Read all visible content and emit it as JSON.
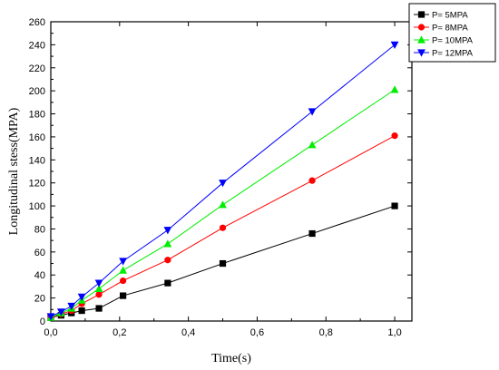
{
  "chart_data": {
    "type": "line",
    "xlabel": "Time(s)",
    "ylabel": "Longitudinal stess(MPA)",
    "xlim": [
      0.0,
      1.05
    ],
    "ylim": [
      0,
      260
    ],
    "x_ticks": [
      "0,0",
      "0,2",
      "0,4",
      "0,6",
      "0,8",
      "1,0"
    ],
    "y_ticks": [
      "0",
      "20",
      "40",
      "60",
      "80",
      "100",
      "120",
      "140",
      "160",
      "180",
      "200",
      "220",
      "240",
      "260"
    ],
    "legend_position": "top-right",
    "series": [
      {
        "name": "P= 5MPA",
        "color": "#000000",
        "marker": "square",
        "x": [
          0.0,
          0.03,
          0.06,
          0.09,
          0.14,
          0.21,
          0.34,
          0.5,
          0.76,
          1.0
        ],
        "y": [
          3,
          5,
          7,
          9,
          11,
          22,
          33,
          50,
          76,
          100
        ]
      },
      {
        "name": "P= 8MPA",
        "color": "#ff0000",
        "marker": "circle",
        "x": [
          0.0,
          0.03,
          0.06,
          0.09,
          0.14,
          0.21,
          0.34,
          0.5,
          0.76,
          1.0
        ],
        "y": [
          3,
          6,
          9,
          15,
          23,
          35,
          53,
          81,
          122,
          161
        ]
      },
      {
        "name": "P= 10MPA",
        "color": "#00ee00",
        "marker": "triangle-up",
        "x": [
          0.0,
          0.03,
          0.06,
          0.09,
          0.14,
          0.21,
          0.34,
          0.5,
          0.76,
          1.0
        ],
        "y": [
          3,
          7,
          11,
          18,
          28,
          44,
          67,
          101,
          153,
          201
        ]
      },
      {
        "name": "P= 12MPA",
        "color": "#0000ff",
        "marker": "triangle-down",
        "x": [
          0.0,
          0.03,
          0.06,
          0.09,
          0.14,
          0.21,
          0.34,
          0.5,
          0.76,
          1.0
        ],
        "y": [
          4,
          8,
          13,
          21,
          33,
          52,
          79,
          120,
          182,
          240
        ]
      }
    ]
  }
}
